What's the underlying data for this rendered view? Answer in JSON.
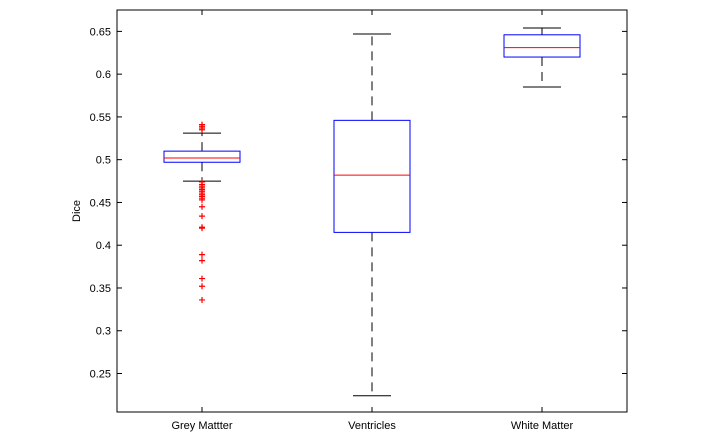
{
  "chart_data": {
    "type": "box",
    "title": "",
    "xlabel": "",
    "ylabel": "Dice",
    "ylim": [
      0.205,
      0.675
    ],
    "yticks": [
      0.25,
      0.3,
      0.35,
      0.4,
      0.45,
      0.5,
      0.55,
      0.6,
      0.65
    ],
    "ytick_labels": [
      "0.25",
      "0.3",
      "0.35",
      "0.4",
      "0.45",
      "0.5",
      "0.55",
      "0.6",
      "0.65"
    ],
    "categories": [
      "Grey Mattter",
      "Ventricles",
      "White Matter"
    ],
    "boxes": [
      {
        "category": "Grey Mattter",
        "whisker_low": 0.475,
        "q1": 0.497,
        "median": 0.502,
        "q3": 0.51,
        "whisker_high": 0.531,
        "outliers": [
          0.541,
          0.539,
          0.537,
          0.535,
          0.474,
          0.471,
          0.469,
          0.467,
          0.465,
          0.463,
          0.461,
          0.459,
          0.457,
          0.455,
          0.453,
          0.445,
          0.434,
          0.421,
          0.42,
          0.389,
          0.382,
          0.361,
          0.352,
          0.336
        ]
      },
      {
        "category": "Ventricles",
        "whisker_low": 0.224,
        "q1": 0.415,
        "median": 0.482,
        "q3": 0.546,
        "whisker_high": 0.647
      },
      {
        "category": "White Matter",
        "whisker_low": 0.585,
        "q1": 0.62,
        "median": 0.631,
        "q3": 0.646,
        "whisker_high": 0.654
      }
    ]
  },
  "colors": {
    "box": "#0000ff",
    "median": "#ff0000",
    "whisker": "#000000",
    "outlier": "#ff0000",
    "axis": "#000000"
  }
}
